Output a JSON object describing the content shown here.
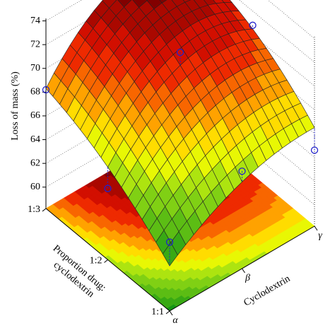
{
  "chart_data": {
    "type": "surface3d",
    "zlabel": "Loss of mass (%)",
    "xlabel": "Cyclodextrin",
    "ylabel": [
      "Proportion drug:",
      "cyclodextrin"
    ],
    "x": [
      "α",
      "β",
      "γ"
    ],
    "y": [
      "1:1",
      "1:2",
      "1:3"
    ],
    "z": [
      [
        62,
        65.5,
        66.5
      ],
      [
        66,
        71,
        70.5
      ],
      [
        68.3,
        73.5,
        72
      ]
    ],
    "zlim": [
      58.2,
      74.2
    ],
    "zticks": [
      60,
      62,
      64,
      66,
      68,
      70,
      72,
      74
    ],
    "grid": true,
    "observed": {
      "color": "#2222cc",
      "x": [
        "α",
        "β",
        "γ",
        "γ",
        "β",
        "α",
        "α"
      ],
      "y": [
        "1:3",
        "1:2",
        "1:2",
        "1:1",
        "1:1",
        "1:2",
        "1:1"
      ],
      "values": [
        68.2,
        72.1,
        70.8,
        64.6,
        66.4,
        64.2,
        64.0
      ]
    }
  }
}
